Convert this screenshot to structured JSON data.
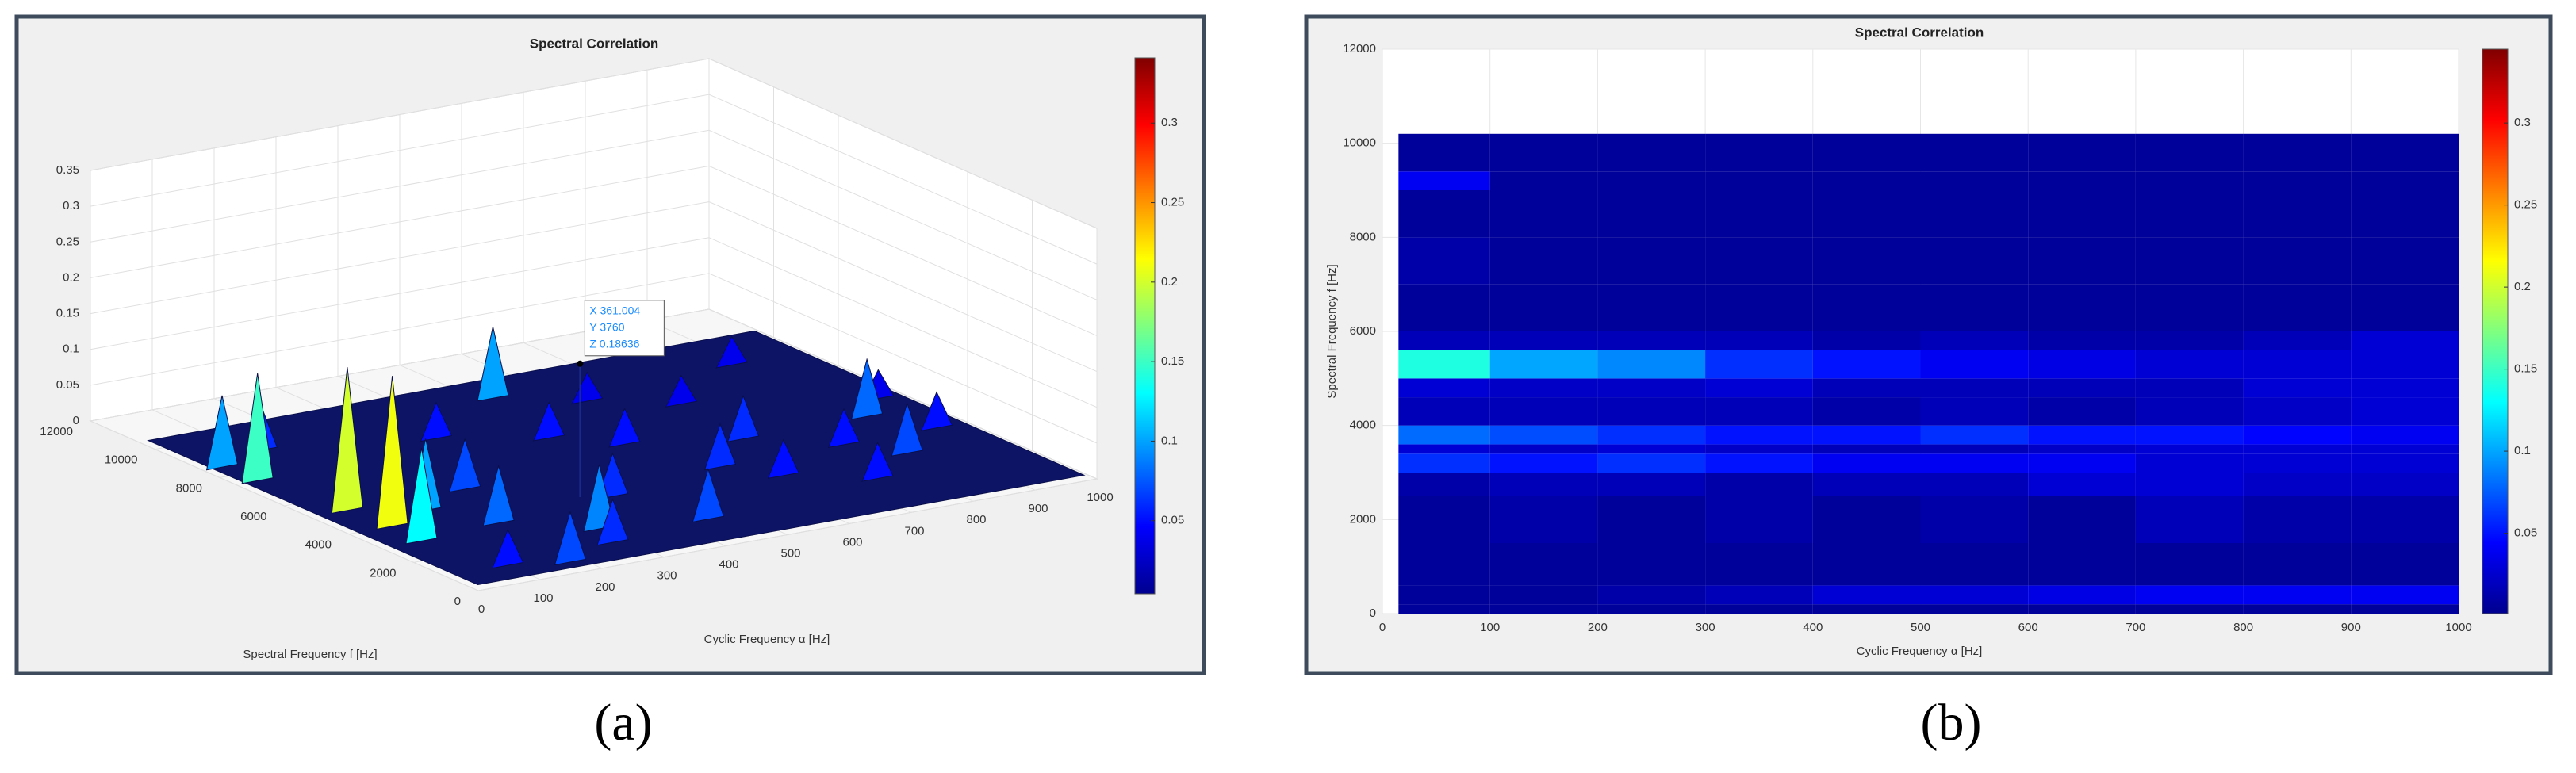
{
  "chart_data": [
    {
      "type": "surface3d",
      "label": "(a)",
      "title": "Spectral Correlation",
      "xlabel": "Cyclic Frequency α [Hz]",
      "ylabel": "Spectral Frequency f [Hz]",
      "xlim": [
        0,
        1000
      ],
      "xticks": [
        0,
        100,
        200,
        300,
        400,
        500,
        600,
        700,
        800,
        900,
        1000
      ],
      "ylim": [
        0,
        12000
      ],
      "yticks": [
        0,
        2000,
        4000,
        6000,
        8000,
        10000,
        12000
      ],
      "zlim": [
        0,
        0.35
      ],
      "zticks": [
        0,
        0.05,
        0.1,
        0.15,
        0.2,
        0.25,
        0.3,
        0.35
      ],
      "clim": [
        0.004,
        0.341
      ],
      "cticks": [
        0.05,
        0.1,
        0.15,
        0.2,
        0.25,
        0.3
      ],
      "grid": true,
      "peaks": {
        "x": [
          880,
          620,
          720,
          960,
          520,
          480,
          350,
          120,
          30,
          35,
          550,
          900,
          700,
          250,
          60,
          950,
          800,
          600,
          400,
          150,
          70,
          850,
          650,
          200,
          65,
          300,
          750,
          450,
          280,
          100,
          180
        ],
        "y": [
          9000,
          8500,
          7500,
          6000,
          9500,
          7000,
          8000,
          9000,
          8500,
          7500,
          6000,
          5200,
          5200,
          5200,
          5200,
          4000,
          4000,
          4000,
          3500,
          4500,
          4000,
          3000,
          3000,
          3200,
          3000,
          2000,
          2000,
          1500,
          1200,
          1000,
          600
        ],
        "z": [
          0.04,
          0.04,
          0.04,
          0.04,
          0.1,
          0.05,
          0.05,
          0.06,
          0.1,
          0.15,
          0.05,
          0.08,
          0.06,
          0.07,
          0.2,
          0.05,
          0.05,
          0.06,
          0.06,
          0.1,
          0.21,
          0.07,
          0.05,
          0.08,
          0.13,
          0.09,
          0.05,
          0.07,
          0.06,
          0.05,
          0.07
        ]
      },
      "datatip": {
        "x": 361.004,
        "y": 3760,
        "z": 0.18636,
        "labels": [
          "X 361.004",
          "Y 3760",
          "Z 0.18636"
        ]
      }
    },
    {
      "type": "heatmap",
      "label": "(b)",
      "title": "Spectral Correlation",
      "xlabel": "Cyclic Frequency α [Hz]",
      "ylabel": "Spectral Frequency f [Hz]",
      "xlim": [
        0,
        1000
      ],
      "xticks": [
        0,
        100,
        200,
        300,
        400,
        500,
        600,
        700,
        800,
        900,
        1000
      ],
      "ylim": [
        0,
        12000
      ],
      "yticks": [
        0,
        2000,
        4000,
        6000,
        8000,
        10000,
        12000
      ],
      "clim": [
        0.001,
        0.345
      ],
      "cticks": [
        0.05,
        0.1,
        0.15,
        0.2,
        0.25,
        0.3
      ],
      "grid": true,
      "xbins": [
        15,
        100,
        200,
        300,
        400,
        500,
        600,
        700,
        800,
        900,
        1000
      ],
      "ybins": [
        0,
        200,
        600,
        1500,
        2500,
        3000,
        3400,
        3600,
        4000,
        4600,
        5000,
        5600,
        6000,
        7000,
        8000,
        9000,
        9400,
        10200
      ],
      "z": [
        [
          0.01,
          0.01,
          0.01,
          0.01,
          0.01,
          0.01,
          0.01,
          0.01,
          0.01,
          0.01
        ],
        [
          0.01,
          0.01,
          0.015,
          0.02,
          0.03,
          0.03,
          0.035,
          0.04,
          0.04,
          0.04
        ],
        [
          0.01,
          0.01,
          0.01,
          0.01,
          0.01,
          0.01,
          0.01,
          0.01,
          0.01,
          0.01
        ],
        [
          0.01,
          0.015,
          0.01,
          0.015,
          0.01,
          0.015,
          0.01,
          0.02,
          0.015,
          0.015
        ],
        [
          0.015,
          0.02,
          0.02,
          0.015,
          0.02,
          0.02,
          0.03,
          0.03,
          0.025,
          0.025
        ],
        [
          0.06,
          0.05,
          0.06,
          0.05,
          0.04,
          0.04,
          0.04,
          0.03,
          0.03,
          0.03
        ],
        [
          0.03,
          0.025,
          0.03,
          0.025,
          0.02,
          0.02,
          0.025,
          0.03,
          0.03,
          0.03
        ],
        [
          0.08,
          0.07,
          0.06,
          0.05,
          0.05,
          0.06,
          0.05,
          0.05,
          0.045,
          0.04
        ],
        [
          0.02,
          0.02,
          0.02,
          0.02,
          0.015,
          0.02,
          0.015,
          0.02,
          0.025,
          0.03
        ],
        [
          0.03,
          0.025,
          0.025,
          0.03,
          0.02,
          0.02,
          0.02,
          0.02,
          0.03,
          0.03
        ],
        [
          0.14,
          0.1,
          0.09,
          0.06,
          0.05,
          0.04,
          0.035,
          0.03,
          0.03,
          0.03
        ],
        [
          0.02,
          0.02,
          0.02,
          0.02,
          0.015,
          0.02,
          0.015,
          0.015,
          0.02,
          0.03
        ],
        [
          0.01,
          0.01,
          0.01,
          0.01,
          0.01,
          0.01,
          0.01,
          0.01,
          0.01,
          0.01
        ],
        [
          0.015,
          0.01,
          0.01,
          0.01,
          0.01,
          0.01,
          0.01,
          0.01,
          0.01,
          0.01
        ],
        [
          0.01,
          0.01,
          0.01,
          0.01,
          0.01,
          0.01,
          0.01,
          0.01,
          0.01,
          0.01
        ],
        [
          0.04,
          0.01,
          0.01,
          0.01,
          0.01,
          0.01,
          0.01,
          0.01,
          0.01,
          0.01
        ],
        [
          0.01,
          0.01,
          0.01,
          0.01,
          0.01,
          0.01,
          0.01,
          0.01,
          0.01,
          0.01
        ]
      ]
    }
  ]
}
